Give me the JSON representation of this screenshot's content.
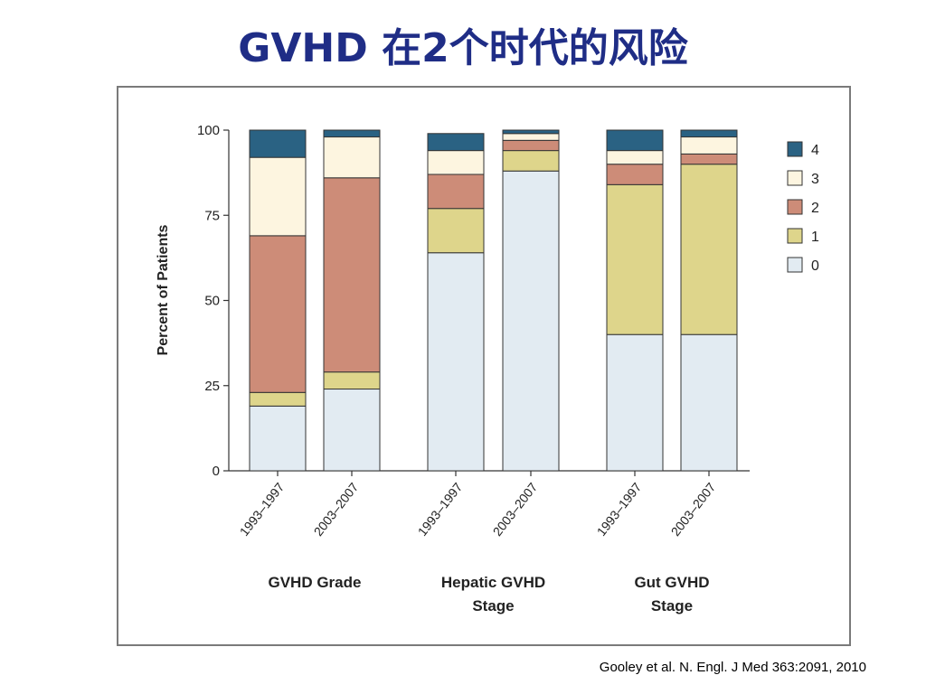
{
  "slide": {
    "title": "GVHD 在2个时代的风险",
    "citation": "Gooley et al. N. Engl. J Med 363:2091, 2010"
  },
  "colors": {
    "4": "#2a6283",
    "3": "#fdf5e0",
    "2": "#cd8c78",
    "1": "#ded58b",
    "0": "#e2ebf2",
    "axis": "#333333",
    "bar_stroke": "#333333"
  },
  "chart_data": {
    "type": "bar",
    "stacked": true,
    "ylabel": "Percent of Patients",
    "xlabel": "",
    "ylim": [
      0,
      100
    ],
    "yticks": [
      0,
      25,
      50,
      75,
      100
    ],
    "groups": [
      "GVHD Grade",
      "Hepatic GVHD Stage",
      "Gut GVHD Stage"
    ],
    "categories": [
      "1993–1997",
      "2003–2007",
      "1993–1997",
      "2003–2007",
      "1993–1997",
      "2003–2007"
    ],
    "group_of_category": [
      0,
      0,
      1,
      1,
      2,
      2
    ],
    "legend": [
      "4",
      "3",
      "2",
      "1",
      "0"
    ],
    "legend_position": "right",
    "series": [
      {
        "name": "0",
        "values": [
          19,
          24,
          64,
          88,
          40,
          40
        ]
      },
      {
        "name": "1",
        "values": [
          4,
          5,
          13,
          6,
          44,
          50
        ]
      },
      {
        "name": "2",
        "values": [
          46,
          57,
          10,
          3,
          6,
          3
        ]
      },
      {
        "name": "3",
        "values": [
          23,
          12,
          7,
          2,
          4,
          5
        ]
      },
      {
        "name": "4",
        "values": [
          8,
          2,
          5,
          1,
          6,
          2
        ]
      }
    ]
  }
}
